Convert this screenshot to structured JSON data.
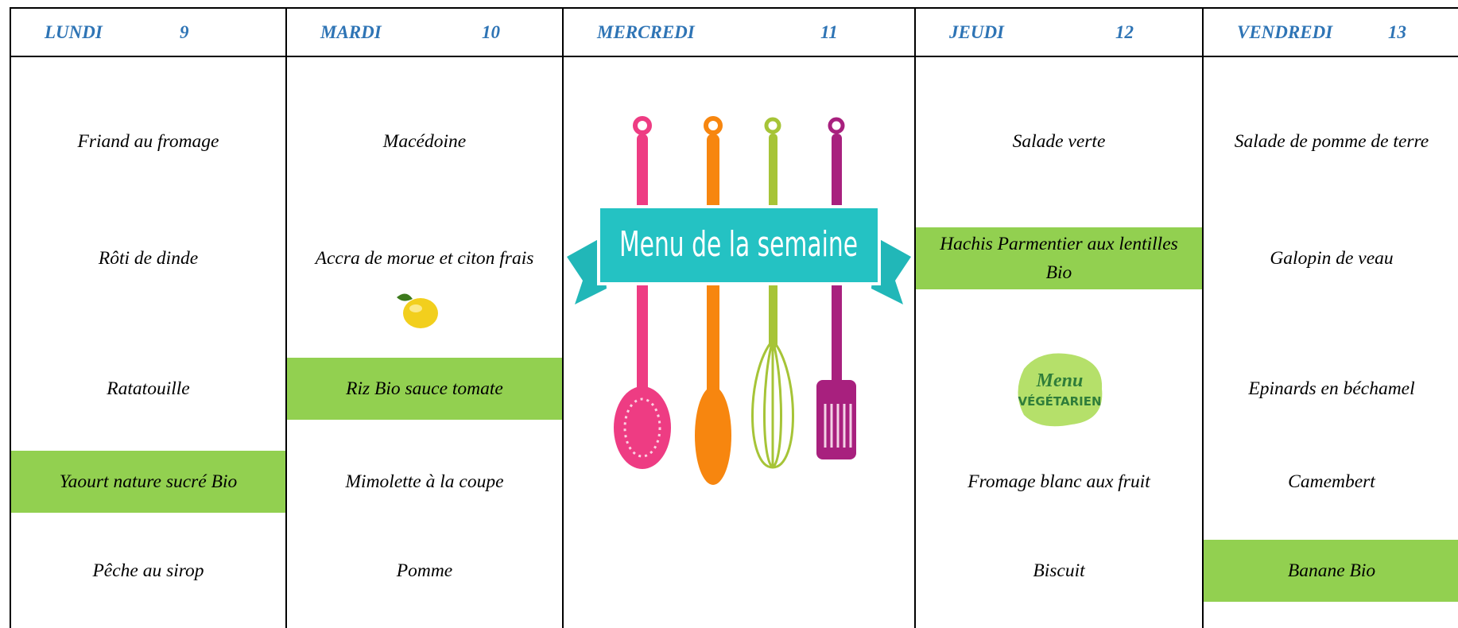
{
  "days": [
    {
      "name": "LUNDI",
      "date": 9,
      "items": [
        {
          "text": "Friand au fromage"
        },
        {
          "text": "Rôti de dinde"
        },
        {
          "text": "Ratatouille"
        },
        {
          "text": "Yaourt nature sucré Bio",
          "highlight": true
        },
        {
          "text": "Pêche au sirop"
        }
      ]
    },
    {
      "name": "MARDI",
      "date": 10,
      "items": [
        {
          "text": "Macédoine"
        },
        {
          "text": "Accra de morue et citon frais"
        },
        {
          "text": "Riz Bio sauce tomate",
          "highlight": true
        },
        {
          "text": "Mimolette à la coupe"
        },
        {
          "text": "Pomme"
        }
      ]
    },
    {
      "name": "MERCREDI",
      "date": 11,
      "banner": "Menu de la semaine",
      "items": []
    },
    {
      "name": "JEUDI",
      "date": 12,
      "items": [
        {
          "text": "Salade verte"
        },
        {
          "text": "Hachis Parmentier aux lentilles Bio",
          "highlight": true
        },
        {
          "badge": [
            "Menu",
            "VÉGÉTARIEN"
          ]
        },
        {
          "text": "Fromage blanc aux fruit"
        },
        {
          "text": "Biscuit"
        }
      ]
    },
    {
      "name": "VENDREDI",
      "date": 13,
      "items": [
        {
          "text": "Salade de pomme de terre"
        },
        {
          "text": "Galopin de veau"
        },
        {
          "text": "Epinards en béchamel"
        },
        {
          "text": "Camembert"
        },
        {
          "text": "Banane Bio",
          "highlight": true
        }
      ]
    }
  ]
}
